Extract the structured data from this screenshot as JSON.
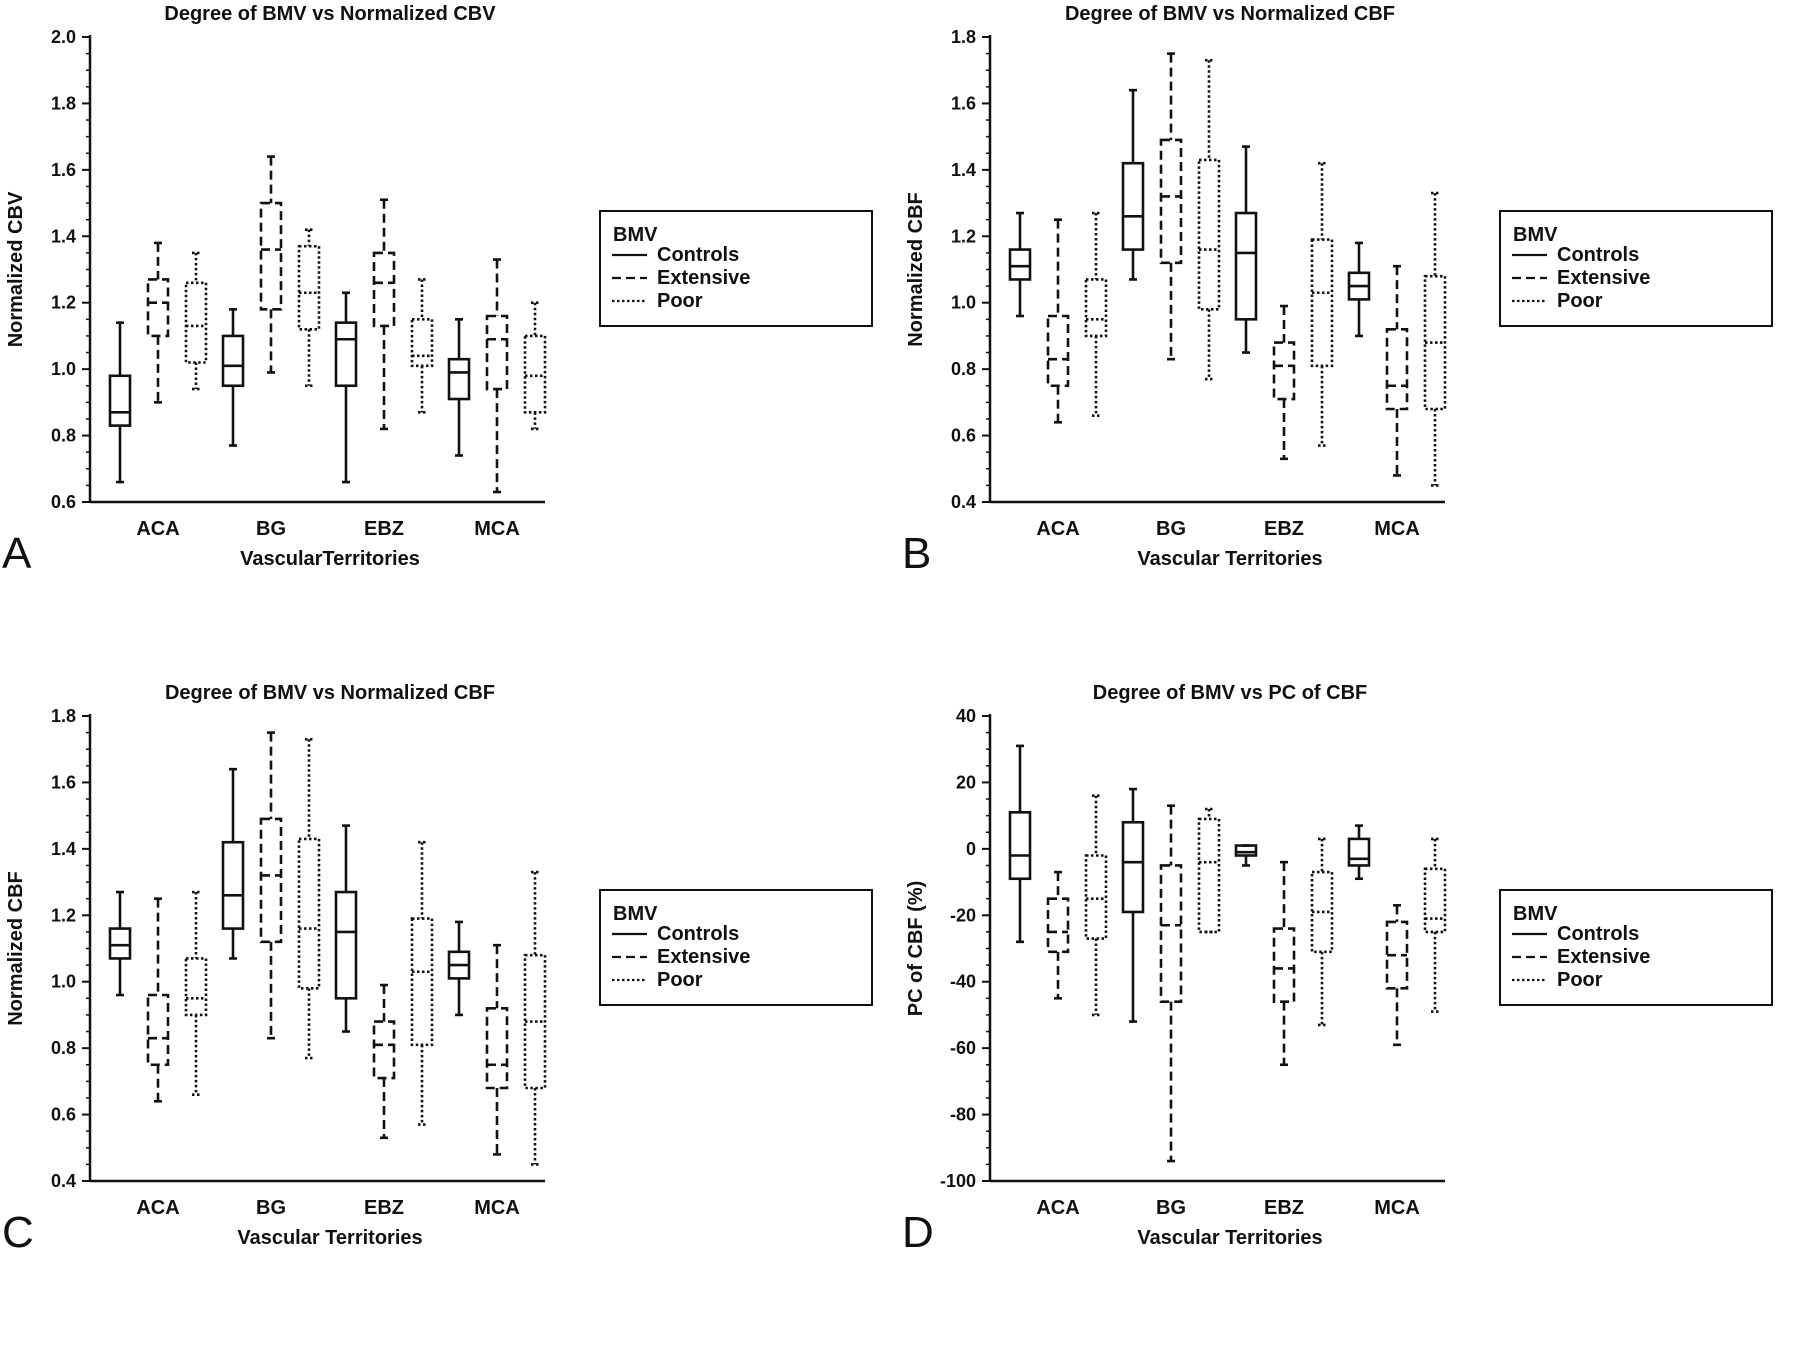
{
  "chart_data": [
    {
      "panel_label": "A",
      "type": "box",
      "title": "Degree of BMV vs Normalized CBV",
      "xlabel": "VascularTerritories",
      "ylabel": "Normalized CBV",
      "ylim": [
        0.6,
        2.0
      ],
      "yticks": [
        "0.6",
        "0.8",
        "1.0",
        "1.2",
        "1.4",
        "1.6",
        "1.8",
        "2.0"
      ],
      "ytick_values": [
        0.6,
        0.8,
        1.0,
        1.2,
        1.4,
        1.6,
        1.8,
        2.0
      ],
      "categories": [
        "ACA",
        "BG",
        "EBZ",
        "MCA"
      ],
      "legend": {
        "title": "BMV",
        "items": [
          "Controls",
          "Extensive",
          "Poor"
        ],
        "position": "right"
      },
      "series": [
        {
          "name": "Controls",
          "style": "solid",
          "boxes": [
            {
              "min": 0.66,
              "q1": 0.83,
              "median": 0.87,
              "q3": 0.98,
              "max": 1.14
            },
            {
              "min": 0.77,
              "q1": 0.95,
              "median": 1.01,
              "q3": 1.1,
              "max": 1.18
            },
            {
              "min": 0.66,
              "q1": 0.95,
              "median": 1.09,
              "q3": 1.14,
              "max": 1.23
            },
            {
              "min": 0.74,
              "q1": 0.91,
              "median": 0.99,
              "q3": 1.03,
              "max": 1.15
            }
          ]
        },
        {
          "name": "Extensive",
          "style": "dashed",
          "boxes": [
            {
              "min": 0.9,
              "q1": 1.1,
              "median": 1.2,
              "q3": 1.27,
              "max": 1.38
            },
            {
              "min": 0.99,
              "q1": 1.18,
              "median": 1.36,
              "q3": 1.5,
              "max": 1.64
            },
            {
              "min": 0.82,
              "q1": 1.13,
              "median": 1.26,
              "q3": 1.35,
              "max": 1.51
            },
            {
              "min": 0.63,
              "q1": 0.94,
              "median": 1.09,
              "q3": 1.16,
              "max": 1.33
            }
          ]
        },
        {
          "name": "Poor",
          "style": "dotted",
          "boxes": [
            {
              "min": 0.94,
              "q1": 1.02,
              "median": 1.13,
              "q3": 1.26,
              "max": 1.35
            },
            {
              "min": 0.95,
              "q1": 1.12,
              "median": 1.23,
              "q3": 1.37,
              "max": 1.42
            },
            {
              "min": 0.87,
              "q1": 1.01,
              "median": 1.04,
              "q3": 1.15,
              "max": 1.27
            },
            {
              "min": 0.82,
              "q1": 0.87,
              "median": 0.98,
              "q3": 1.1,
              "max": 1.2
            }
          ]
        }
      ]
    },
    {
      "panel_label": "B",
      "type": "box",
      "title": "Degree of BMV vs Normalized CBF",
      "xlabel": "Vascular Territories",
      "ylabel": "Normalized CBF",
      "ylim": [
        0.4,
        1.8
      ],
      "yticks": [
        "0.4",
        "0.6",
        "0.8",
        "1.0",
        "1.2",
        "1.4",
        "1.6",
        "1.8"
      ],
      "ytick_values": [
        0.4,
        0.6,
        0.8,
        1.0,
        1.2,
        1.4,
        1.6,
        1.8
      ],
      "categories": [
        "ACA",
        "BG",
        "EBZ",
        "MCA"
      ],
      "legend": {
        "title": "BMV",
        "items": [
          "Controls",
          "Extensive",
          "Poor"
        ],
        "position": "right"
      },
      "series": [
        {
          "name": "Controls",
          "style": "solid",
          "boxes": [
            {
              "min": 0.96,
              "q1": 1.07,
              "median": 1.11,
              "q3": 1.16,
              "max": 1.27
            },
            {
              "min": 1.07,
              "q1": 1.16,
              "median": 1.26,
              "q3": 1.42,
              "max": 1.64
            },
            {
              "min": 0.85,
              "q1": 0.95,
              "median": 1.15,
              "q3": 1.27,
              "max": 1.47
            },
            {
              "min": 0.9,
              "q1": 1.01,
              "median": 1.05,
              "q3": 1.09,
              "max": 1.18
            }
          ]
        },
        {
          "name": "Extensive",
          "style": "dashed",
          "boxes": [
            {
              "min": 0.64,
              "q1": 0.75,
              "median": 0.83,
              "q3": 0.96,
              "max": 1.25
            },
            {
              "min": 0.83,
              "q1": 1.12,
              "median": 1.32,
              "q3": 1.49,
              "max": 1.75
            },
            {
              "min": 0.53,
              "q1": 0.71,
              "median": 0.81,
              "q3": 0.88,
              "max": 0.99
            },
            {
              "min": 0.48,
              "q1": 0.68,
              "median": 0.75,
              "q3": 0.92,
              "max": 1.11
            }
          ]
        },
        {
          "name": "Poor",
          "style": "dotted",
          "boxes": [
            {
              "min": 0.66,
              "q1": 0.9,
              "median": 0.95,
              "q3": 1.07,
              "max": 1.27
            },
            {
              "min": 0.77,
              "q1": 0.98,
              "median": 1.16,
              "q3": 1.43,
              "max": 1.73
            },
            {
              "min": 0.57,
              "q1": 0.81,
              "median": 1.03,
              "q3": 1.19,
              "max": 1.42
            },
            {
              "min": 0.45,
              "q1": 0.68,
              "median": 0.88,
              "q3": 1.08,
              "max": 1.33
            }
          ]
        }
      ]
    },
    {
      "panel_label": "C",
      "type": "box",
      "title": "Degree of BMV vs Normalized CBF",
      "xlabel": "Vascular Territories",
      "ylabel": "Normalized CBF",
      "ylim": [
        0.4,
        1.8
      ],
      "yticks": [
        "0.4",
        "0.6",
        "0.8",
        "1.0",
        "1.2",
        "1.4",
        "1.6",
        "1.8"
      ],
      "ytick_values": [
        0.4,
        0.6,
        0.8,
        1.0,
        1.2,
        1.4,
        1.6,
        1.8
      ],
      "categories": [
        "ACA",
        "BG",
        "EBZ",
        "MCA"
      ],
      "legend": {
        "title": "BMV",
        "items": [
          "Controls",
          "Extensive",
          "Poor"
        ],
        "position": "right"
      },
      "series": [
        {
          "name": "Controls",
          "style": "solid",
          "boxes": [
            {
              "min": 0.96,
              "q1": 1.07,
              "median": 1.11,
              "q3": 1.16,
              "max": 1.27
            },
            {
              "min": 1.07,
              "q1": 1.16,
              "median": 1.26,
              "q3": 1.42,
              "max": 1.64
            },
            {
              "min": 0.85,
              "q1": 0.95,
              "median": 1.15,
              "q3": 1.27,
              "max": 1.47
            },
            {
              "min": 0.9,
              "q1": 1.01,
              "median": 1.05,
              "q3": 1.09,
              "max": 1.18
            }
          ]
        },
        {
          "name": "Extensive",
          "style": "dashed",
          "boxes": [
            {
              "min": 0.64,
              "q1": 0.75,
              "median": 0.83,
              "q3": 0.96,
              "max": 1.25
            },
            {
              "min": 0.83,
              "q1": 1.12,
              "median": 1.32,
              "q3": 1.49,
              "max": 1.75
            },
            {
              "min": 0.53,
              "q1": 0.71,
              "median": 0.81,
              "q3": 0.88,
              "max": 0.99
            },
            {
              "min": 0.48,
              "q1": 0.68,
              "median": 0.75,
              "q3": 0.92,
              "max": 1.11
            }
          ]
        },
        {
          "name": "Poor",
          "style": "dotted",
          "boxes": [
            {
              "min": 0.66,
              "q1": 0.9,
              "median": 0.95,
              "q3": 1.07,
              "max": 1.27
            },
            {
              "min": 0.77,
              "q1": 0.98,
              "median": 1.16,
              "q3": 1.43,
              "max": 1.73
            },
            {
              "min": 0.57,
              "q1": 0.81,
              "median": 1.03,
              "q3": 1.19,
              "max": 1.42
            },
            {
              "min": 0.45,
              "q1": 0.68,
              "median": 0.88,
              "q3": 1.08,
              "max": 1.33
            }
          ]
        }
      ]
    },
    {
      "panel_label": "D",
      "type": "box",
      "title": "Degree of BMV vs PC of CBF",
      "xlabel": "Vascular Territories",
      "ylabel": "PC of CBF (%)",
      "ylim": [
        -100,
        40
      ],
      "yticks": [
        "-100",
        "-80",
        "-60",
        "-40",
        "-20",
        "0",
        "20",
        "40"
      ],
      "ytick_values": [
        -100,
        -80,
        -60,
        -40,
        -20,
        0,
        20,
        40
      ],
      "categories": [
        "ACA",
        "BG",
        "EBZ",
        "MCA"
      ],
      "legend": {
        "title": "BMV",
        "items": [
          "Controls",
          "Extensive",
          "Poor"
        ],
        "position": "right"
      },
      "series": [
        {
          "name": "Controls",
          "style": "solid",
          "boxes": [
            {
              "min": -28,
              "q1": -9,
              "median": -2,
              "q3": 11,
              "max": 31
            },
            {
              "min": -52,
              "q1": -19,
              "median": -4,
              "q3": 8,
              "max": 18
            },
            {
              "min": -5,
              "q1": -2,
              "median": -1,
              "q3": 1,
              "max": 1
            },
            {
              "min": -9,
              "q1": -5,
              "median": -3,
              "q3": 3,
              "max": 7
            }
          ]
        },
        {
          "name": "Extensive",
          "style": "dashed",
          "boxes": [
            {
              "min": -45,
              "q1": -31,
              "median": -25,
              "q3": -15,
              "max": -7
            },
            {
              "min": -94,
              "q1": -46,
              "median": -23,
              "q3": -5,
              "max": 13
            },
            {
              "min": -65,
              "q1": -46,
              "median": -36,
              "q3": -24,
              "max": -4
            },
            {
              "min": -59,
              "q1": -42,
              "median": -32,
              "q3": -22,
              "max": -17
            }
          ]
        },
        {
          "name": "Poor",
          "style": "dotted",
          "boxes": [
            {
              "min": -50,
              "q1": -27,
              "median": -15,
              "q3": -2,
              "max": 16
            },
            {
              "min": -25,
              "q1": -25,
              "median": -4,
              "q3": 9,
              "max": 12
            },
            {
              "min": -53,
              "q1": -31,
              "median": -19,
              "q3": -7,
              "max": 3
            },
            {
              "min": -49,
              "q1": -25,
              "median": -21,
              "q3": -6,
              "max": 3
            }
          ]
        }
      ]
    }
  ]
}
